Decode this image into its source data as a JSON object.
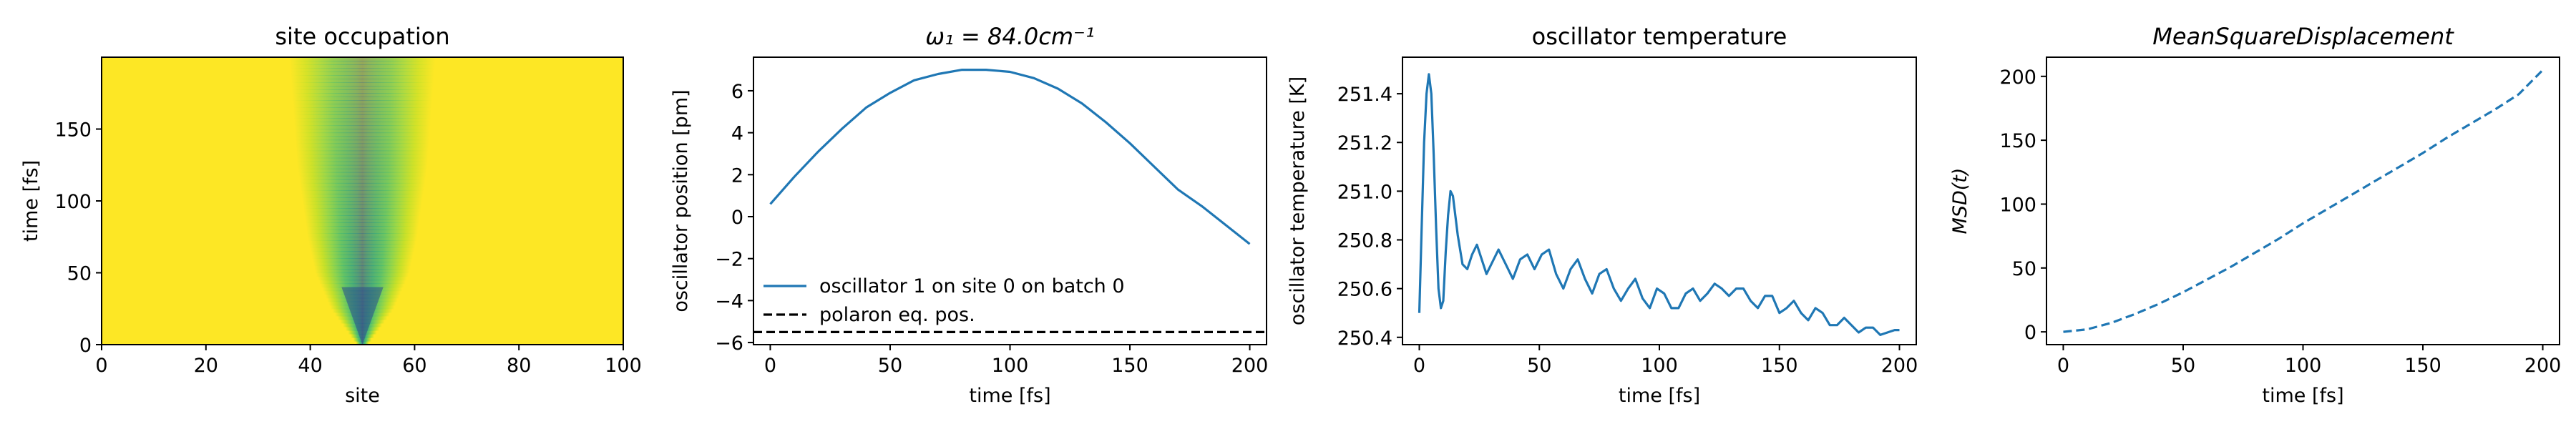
{
  "chart_data": [
    {
      "type": "heatmap",
      "title": "site occupation",
      "xlabel": "site",
      "ylabel": "time [fs]",
      "xlim": [
        0,
        100
      ],
      "ylim": [
        0,
        200
      ],
      "xticks": [
        0,
        20,
        40,
        60,
        80,
        100
      ],
      "yticks": [
        0,
        50,
        100,
        150
      ],
      "background_color": "#fde725",
      "spread": {
        "center_site": 50,
        "t": [
          0,
          25,
          50,
          75,
          100,
          125,
          150,
          175,
          200
        ],
        "half_width_sites": [
          1,
          6,
          9,
          10.5,
          11.5,
          12.5,
          13,
          13.5,
          14
        ]
      },
      "colormap": "viridis"
    },
    {
      "type": "line",
      "title": "ω₁ = 84.0cm⁻¹",
      "xlabel": "time [fs]",
      "ylabel": "oscillator position [pm]",
      "xlim": [
        -7,
        207
      ],
      "ylim": [
        -6.1,
        7.6
      ],
      "xticks": [
        0,
        50,
        100,
        150,
        200
      ],
      "yticks": [
        -6,
        -4,
        -2,
        0,
        2,
        4,
        6
      ],
      "legend_position": "lower-left",
      "series": [
        {
          "name": "oscillator 1 on site 0 on batch 0",
          "color": "#1f77b4",
          "style": "solid",
          "x": [
            0,
            10,
            20,
            30,
            40,
            50,
            60,
            70,
            80,
            90,
            100,
            110,
            120,
            130,
            140,
            150,
            160,
            170,
            180,
            190,
            200
          ],
          "y": [
            0.6,
            1.9,
            3.1,
            4.2,
            5.2,
            5.9,
            6.5,
            6.8,
            7.0,
            7.0,
            6.9,
            6.6,
            6.1,
            5.4,
            4.5,
            3.5,
            2.4,
            1.3,
            0.5,
            -0.4,
            -1.3
          ]
        },
        {
          "name": "polaron eq. pos.",
          "color": "#000000",
          "style": "dashed",
          "x": [
            -7,
            207
          ],
          "y": [
            -5.5,
            -5.5
          ]
        }
      ]
    },
    {
      "type": "line",
      "title": "oscillator temperature",
      "xlabel": "time [fs]",
      "ylabel": "oscillator temperature [K]",
      "xlim": [
        -7,
        207
      ],
      "ylim": [
        250.37,
        251.55
      ],
      "xticks": [
        0,
        50,
        100,
        150,
        200
      ],
      "yticks": [
        250.4,
        250.6,
        250.8,
        251.0,
        251.2,
        251.4
      ],
      "series": [
        {
          "name": "",
          "color": "#1f77b4",
          "style": "solid",
          "x": [
            0,
            1,
            2,
            3,
            4,
            5,
            6,
            7,
            8,
            9,
            10,
            11,
            12,
            13,
            14,
            16,
            18,
            20,
            22,
            24,
            26,
            28,
            30,
            33,
            36,
            39,
            42,
            45,
            48,
            51,
            54,
            57,
            60,
            63,
            66,
            69,
            72,
            75,
            78,
            81,
            84,
            87,
            90,
            93,
            96,
            99,
            102,
            105,
            108,
            111,
            114,
            117,
            120,
            123,
            126,
            129,
            132,
            135,
            138,
            141,
            144,
            147,
            150,
            153,
            156,
            159,
            162,
            165,
            168,
            171,
            174,
            177,
            180,
            183,
            186,
            189,
            192,
            195,
            198,
            200
          ],
          "y": [
            250.5,
            250.85,
            251.2,
            251.4,
            251.48,
            251.4,
            251.15,
            250.85,
            250.6,
            250.52,
            250.55,
            250.75,
            250.9,
            251.0,
            250.98,
            250.82,
            250.7,
            250.68,
            250.74,
            250.78,
            250.72,
            250.66,
            250.7,
            250.76,
            250.7,
            250.64,
            250.72,
            250.74,
            250.68,
            250.74,
            250.76,
            250.66,
            250.6,
            250.68,
            250.72,
            250.64,
            250.58,
            250.66,
            250.68,
            250.6,
            250.55,
            250.6,
            250.64,
            250.56,
            250.52,
            250.6,
            250.58,
            250.52,
            250.52,
            250.58,
            250.6,
            250.55,
            250.58,
            250.62,
            250.6,
            250.57,
            250.6,
            250.6,
            250.55,
            250.52,
            250.57,
            250.57,
            250.5,
            250.52,
            250.55,
            250.5,
            250.47,
            250.52,
            250.5,
            250.45,
            250.45,
            250.48,
            250.45,
            250.42,
            250.44,
            250.44,
            250.41,
            250.42,
            250.43,
            250.43
          ]
        }
      ]
    },
    {
      "type": "line",
      "title": "MeanSquareDisplacement",
      "xlabel": "time [fs]",
      "ylabel": "MSD(t)",
      "xlim": [
        -7,
        207
      ],
      "ylim": [
        -10,
        215
      ],
      "xticks": [
        0,
        50,
        100,
        150,
        200
      ],
      "yticks": [
        0,
        50,
        100,
        150,
        200
      ],
      "series": [
        {
          "name": "",
          "color": "#1f77b4",
          "style": "dashed",
          "x": [
            0,
            10,
            20,
            30,
            40,
            50,
            60,
            70,
            80,
            90,
            100,
            110,
            120,
            130,
            140,
            150,
            160,
            170,
            180,
            190,
            200
          ],
          "y": [
            0,
            2,
            7,
            14,
            22,
            31,
            41,
            51,
            62,
            73,
            85,
            96,
            107,
            118,
            129,
            140,
            152,
            163,
            174,
            186,
            205
          ]
        }
      ]
    }
  ]
}
